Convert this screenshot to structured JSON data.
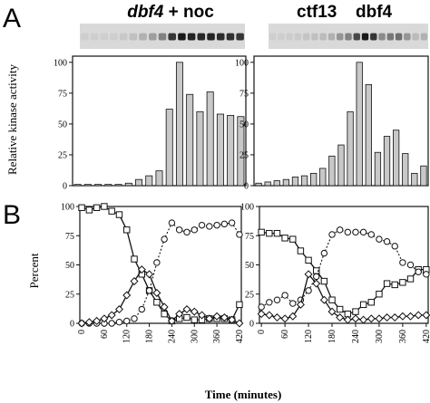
{
  "figure": {
    "panel_a_letter": "A",
    "panel_b_letter": "B",
    "left_blot_title": {
      "gene": "dbf4",
      "rest": " + noc"
    },
    "right_blot_title": {
      "gene1": "ctf13",
      "gene2": "dbf4"
    },
    "ylabel_a": "Relative kinase activity",
    "ylabel_b": "Percent",
    "xlabel": "Time (minutes)"
  },
  "chart_data": [
    {
      "type": "bar",
      "panel": "A-left",
      "title": "dbf4 + noc",
      "ylabel": "Relative kinase activity",
      "ylim": [
        0,
        105
      ],
      "yticks": [
        0,
        25,
        50,
        75,
        100
      ],
      "values": [
        1,
        1,
        1,
        1,
        1,
        2,
        5,
        8,
        12,
        62,
        100,
        74,
        60,
        76,
        58,
        57,
        56
      ],
      "bar_color": "#c8c8c8",
      "blot_intensity": [
        0.05,
        0.05,
        0.05,
        0.05,
        0.08,
        0.12,
        0.2,
        0.3,
        0.45,
        0.85,
        1.0,
        0.95,
        0.92,
        0.94,
        0.9,
        0.88,
        0.85
      ]
    },
    {
      "type": "bar",
      "panel": "A-right",
      "title": "ctf13 dbf4",
      "ylim": [
        0,
        105
      ],
      "yticks": [
        0,
        25,
        50,
        75,
        100
      ],
      "values": [
        2,
        3,
        4,
        5,
        7,
        8,
        10,
        14,
        24,
        33,
        60,
        100,
        82,
        27,
        40,
        45,
        26,
        10,
        16
      ],
      "bar_color": "#c8c8c8",
      "blot_intensity": [
        0.05,
        0.05,
        0.06,
        0.07,
        0.1,
        0.12,
        0.15,
        0.2,
        0.35,
        0.45,
        0.75,
        1.0,
        0.85,
        0.4,
        0.5,
        0.55,
        0.35,
        0.15,
        0.2
      ]
    },
    {
      "type": "line",
      "panel": "B-left",
      "ylabel": "Percent",
      "xlabel": "Time (minutes)",
      "xlim": [
        -5,
        425
      ],
      "ylim": [
        0,
        100
      ],
      "xticks": [
        0,
        60,
        120,
        180,
        240,
        300,
        360,
        420
      ],
      "yticks": [
        0,
        25,
        50,
        75,
        100
      ],
      "series": [
        {
          "marker": "square",
          "dash": "solid",
          "x": [
            0,
            20,
            40,
            60,
            80,
            100,
            120,
            140,
            160,
            180,
            200,
            220,
            240,
            260,
            280,
            300,
            320,
            340,
            360,
            380,
            400,
            420
          ],
          "y": [
            99,
            97,
            99,
            100,
            96,
            93,
            80,
            55,
            42,
            28,
            18,
            8,
            2,
            4,
            5,
            3,
            3,
            4,
            4,
            4,
            3,
            16
          ]
        },
        {
          "marker": "circle",
          "dash": "dotted",
          "x": [
            0,
            20,
            40,
            60,
            80,
            100,
            120,
            140,
            160,
            180,
            200,
            220,
            240,
            260,
            280,
            300,
            320,
            340,
            360,
            380,
            400,
            420
          ],
          "y": [
            0,
            0,
            0,
            0,
            0,
            1,
            2,
            4,
            12,
            28,
            52,
            72,
            86,
            80,
            78,
            80,
            84,
            83,
            84,
            85,
            86,
            76
          ]
        },
        {
          "marker": "diamond",
          "dash": "solid",
          "x": [
            0,
            20,
            40,
            60,
            80,
            100,
            120,
            140,
            160,
            180,
            200,
            220,
            240,
            260,
            280,
            300,
            320,
            340,
            360,
            380,
            400,
            420
          ],
          "y": [
            0,
            1,
            2,
            4,
            7,
            12,
            24,
            36,
            46,
            42,
            26,
            14,
            2,
            8,
            12,
            10,
            7,
            4,
            6,
            5,
            3,
            0
          ]
        }
      ]
    },
    {
      "type": "line",
      "panel": "B-right",
      "xlim": [
        -5,
        425
      ],
      "ylim": [
        0,
        100
      ],
      "xticks": [
        0,
        60,
        120,
        180,
        240,
        300,
        360,
        420
      ],
      "yticks": [
        0,
        25,
        50,
        75,
        100
      ],
      "series": [
        {
          "marker": "square",
          "dash": "solid",
          "x": [
            0,
            20,
            40,
            60,
            80,
            100,
            120,
            140,
            160,
            180,
            200,
            220,
            240,
            260,
            280,
            300,
            320,
            340,
            360,
            380,
            400,
            420
          ],
          "y": [
            78,
            77,
            77,
            73,
            72,
            62,
            54,
            45,
            36,
            20,
            12,
            8,
            10,
            16,
            18,
            25,
            34,
            33,
            35,
            38,
            46,
            46
          ]
        },
        {
          "marker": "circle",
          "dash": "dotted",
          "x": [
            0,
            20,
            40,
            60,
            80,
            100,
            120,
            140,
            160,
            180,
            200,
            220,
            240,
            260,
            280,
            300,
            320,
            340,
            360,
            380,
            400,
            420
          ],
          "y": [
            14,
            18,
            20,
            24,
            17,
            20,
            28,
            40,
            60,
            76,
            80,
            78,
            78,
            78,
            76,
            72,
            70,
            66,
            52,
            50,
            44,
            42
          ]
        },
        {
          "marker": "diamond",
          "dash": "solid",
          "x": [
            0,
            20,
            40,
            60,
            80,
            100,
            120,
            140,
            160,
            180,
            200,
            220,
            240,
            260,
            280,
            300,
            320,
            340,
            360,
            380,
            400,
            420
          ],
          "y": [
            8,
            7,
            5,
            4,
            6,
            16,
            42,
            34,
            20,
            10,
            5,
            3,
            4,
            3,
            4,
            4,
            5,
            5,
            6,
            6,
            7,
            7
          ]
        }
      ]
    }
  ]
}
